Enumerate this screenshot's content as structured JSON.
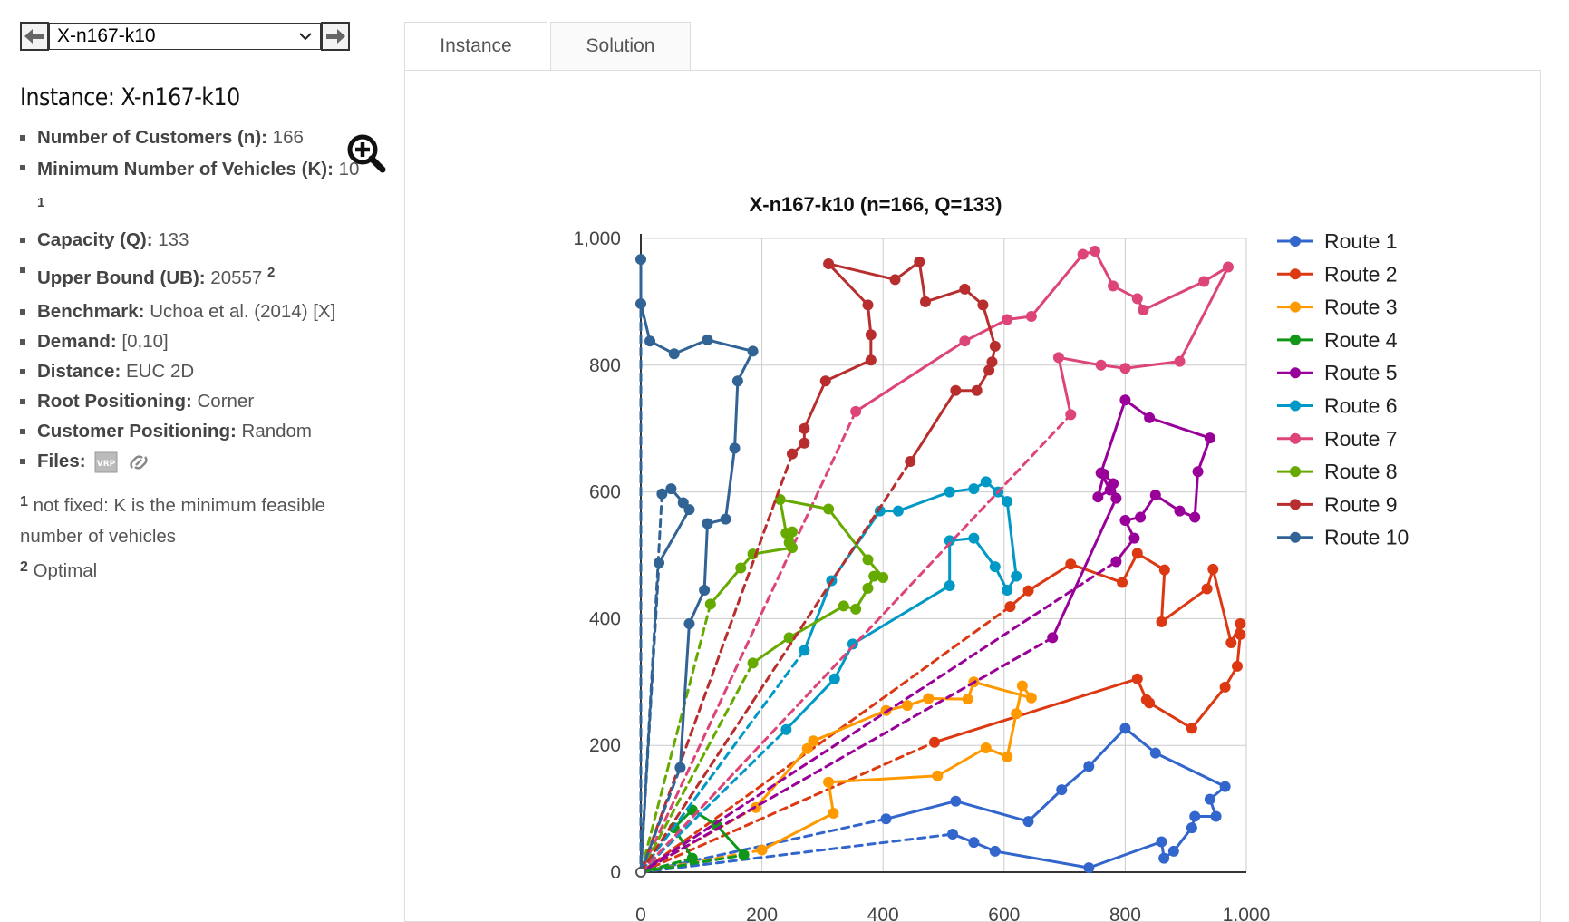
{
  "selector": {
    "value": "X-n167-k10"
  },
  "instance": {
    "title": "Instance: X-n167-k10",
    "n_label": "Number of Customers (n):",
    "n_value": " 166",
    "k_label": "Minimum Number of Vehicles (K):",
    "k_value": " 10",
    "k_note": "1",
    "q_label": "Capacity (Q):",
    "q_value": " 133",
    "ub_label": "Upper Bound (UB):",
    "ub_value": " 20557",
    "ub_note": "2",
    "bench_label": "Benchmark:",
    "bench_value": " Uchoa et al. (2014) [X]",
    "demand_label": "Demand:",
    "demand_value": " [0,10]",
    "distance_label": "Distance:",
    "distance_value": " EUC 2D",
    "root_label": "Root Positioning:",
    "root_value": " Corner",
    "cust_label": "Customer Positioning:",
    "cust_value": " Random",
    "files_label": "Files:",
    "files_icon": "vrp-file-icon",
    "link_icon": "link-icon",
    "zoom_icon": "zoom-in-icon"
  },
  "footnotes": [
    {
      "mark": "1",
      "text": " not fixed: K is the minimum feasible number of vehicles"
    },
    {
      "mark": "2",
      "text": " Optimal"
    }
  ],
  "tabs": {
    "instance": "Instance",
    "solution": "Solution"
  },
  "chart_data": {
    "type": "line",
    "title": "X-n167-k10 (n=166, Q=133)",
    "xlim": [
      0,
      1000
    ],
    "ylim": [
      0,
      1000
    ],
    "xticks": [
      "0",
      "200",
      "400",
      "600",
      "800",
      "1,000"
    ],
    "yticks": [
      "0",
      "200",
      "400",
      "600",
      "800",
      "1,000"
    ],
    "grid": true,
    "legend": "right",
    "depot": [
      0,
      0
    ],
    "series": [
      {
        "name": "Route 1",
        "color": "#3366cc",
        "points": [
          [
            0,
            0
          ],
          [
            515,
            60
          ],
          [
            550,
            47
          ],
          [
            585,
            33
          ],
          [
            740,
            7
          ],
          [
            860,
            48
          ],
          [
            864,
            22
          ],
          [
            880,
            33
          ],
          [
            910,
            70
          ],
          [
            915,
            88
          ],
          [
            950,
            88
          ],
          [
            940,
            115
          ],
          [
            965,
            135
          ],
          [
            850,
            188
          ],
          [
            800,
            227
          ],
          [
            740,
            167
          ],
          [
            695,
            130
          ],
          [
            640,
            80
          ],
          [
            520,
            112
          ],
          [
            405,
            84
          ],
          [
            0,
            0
          ]
        ]
      },
      {
        "name": "Route 2",
        "color": "#dc3912",
        "points": [
          [
            0,
            0
          ],
          [
            485,
            205
          ],
          [
            820,
            305
          ],
          [
            835,
            272
          ],
          [
            840,
            267
          ],
          [
            910,
            227
          ],
          [
            965,
            292
          ],
          [
            985,
            325
          ],
          [
            990,
            375
          ],
          [
            990,
            392
          ],
          [
            975,
            362
          ],
          [
            945,
            478
          ],
          [
            935,
            447
          ],
          [
            860,
            395
          ],
          [
            865,
            477
          ],
          [
            820,
            503
          ],
          [
            795,
            457
          ],
          [
            710,
            486
          ],
          [
            640,
            444
          ],
          [
            610,
            419
          ],
          [
            0,
            0
          ]
        ]
      },
      {
        "name": "Route 3",
        "color": "#ff9900",
        "points": [
          [
            0,
            0
          ],
          [
            200,
            35
          ],
          [
            318,
            93
          ],
          [
            310,
            142
          ],
          [
            490,
            152
          ],
          [
            570,
            196
          ],
          [
            605,
            182
          ],
          [
            620,
            250
          ],
          [
            630,
            294
          ],
          [
            645,
            275
          ],
          [
            550,
            300
          ],
          [
            540,
            273
          ],
          [
            475,
            274
          ],
          [
            440,
            263
          ],
          [
            405,
            255
          ],
          [
            285,
            207
          ],
          [
            275,
            195
          ],
          [
            190,
            102
          ],
          [
            0,
            0
          ]
        ]
      },
      {
        "name": "Route 4",
        "color": "#109618",
        "points": [
          [
            0,
            0
          ],
          [
            170,
            27
          ],
          [
            125,
            74
          ],
          [
            85,
            98
          ],
          [
            55,
            70
          ],
          [
            85,
            22
          ],
          [
            0,
            0
          ]
        ]
      },
      {
        "name": "Route 5",
        "color": "#990099",
        "points": [
          [
            0,
            0
          ],
          [
            785,
            490
          ],
          [
            815,
            527
          ],
          [
            800,
            555
          ],
          [
            825,
            560
          ],
          [
            850,
            595
          ],
          [
            890,
            570
          ],
          [
            915,
            560
          ],
          [
            920,
            632
          ],
          [
            940,
            685
          ],
          [
            840,
            717
          ],
          [
            800,
            745
          ],
          [
            760,
            630
          ],
          [
            775,
            603
          ],
          [
            755,
            592
          ],
          [
            765,
            628
          ],
          [
            780,
            613
          ],
          [
            785,
            590
          ],
          [
            680,
            370
          ],
          [
            0,
            0
          ]
        ]
      },
      {
        "name": "Route 6",
        "color": "#0099c6",
        "points": [
          [
            0,
            0
          ],
          [
            240,
            225
          ],
          [
            320,
            305
          ],
          [
            350,
            360
          ],
          [
            510,
            452
          ],
          [
            510,
            523
          ],
          [
            550,
            527
          ],
          [
            585,
            482
          ],
          [
            605,
            445
          ],
          [
            620,
            467
          ],
          [
            605,
            585
          ],
          [
            590,
            600
          ],
          [
            570,
            616
          ],
          [
            550,
            605
          ],
          [
            510,
            600
          ],
          [
            425,
            570
          ],
          [
            395,
            570
          ],
          [
            315,
            460
          ],
          [
            270,
            350
          ],
          [
            0,
            0
          ]
        ]
      },
      {
        "name": "Route 7",
        "color": "#dd4477",
        "points": [
          [
            0,
            0
          ],
          [
            710,
            722
          ],
          [
            690,
            812
          ],
          [
            760,
            800
          ],
          [
            800,
            795
          ],
          [
            890,
            806
          ],
          [
            970,
            955
          ],
          [
            930,
            932
          ],
          [
            830,
            887
          ],
          [
            820,
            905
          ],
          [
            780,
            925
          ],
          [
            750,
            980
          ],
          [
            730,
            975
          ],
          [
            645,
            877
          ],
          [
            605,
            872
          ],
          [
            535,
            838
          ],
          [
            355,
            727
          ],
          [
            0,
            0
          ]
        ]
      },
      {
        "name": "Route 8",
        "color": "#66aa00",
        "points": [
          [
            0,
            0
          ],
          [
            185,
            330
          ],
          [
            245,
            370
          ],
          [
            335,
            420
          ],
          [
            355,
            415
          ],
          [
            375,
            448
          ],
          [
            385,
            467
          ],
          [
            400,
            465
          ],
          [
            375,
            493
          ],
          [
            310,
            573
          ],
          [
            230,
            588
          ],
          [
            240,
            535
          ],
          [
            245,
            520
          ],
          [
            250,
            537
          ],
          [
            250,
            512
          ],
          [
            185,
            502
          ],
          [
            165,
            480
          ],
          [
            115,
            423
          ],
          [
            0,
            0
          ]
        ]
      },
      {
        "name": "Route 9",
        "color": "#b82e2e",
        "points": [
          [
            0,
            0
          ],
          [
            445,
            648
          ],
          [
            520,
            760
          ],
          [
            555,
            760
          ],
          [
            575,
            792
          ],
          [
            580,
            805
          ],
          [
            585,
            830
          ],
          [
            565,
            895
          ],
          [
            535,
            920
          ],
          [
            470,
            900
          ],
          [
            460,
            963
          ],
          [
            420,
            935
          ],
          [
            310,
            960
          ],
          [
            375,
            895
          ],
          [
            380,
            848
          ],
          [
            380,
            808
          ],
          [
            305,
            775
          ],
          [
            270,
            700
          ],
          [
            270,
            677
          ],
          [
            250,
            660
          ],
          [
            0,
            0
          ]
        ]
      },
      {
        "name": "Route 10",
        "color": "#316395",
        "points": [
          [
            0,
            0
          ],
          [
            65,
            165
          ],
          [
            80,
            392
          ],
          [
            105,
            445
          ],
          [
            110,
            550
          ],
          [
            140,
            557
          ],
          [
            155,
            669
          ],
          [
            160,
            775
          ],
          [
            185,
            822
          ],
          [
            110,
            840
          ],
          [
            55,
            818
          ],
          [
            15,
            838
          ],
          [
            0,
            897
          ],
          [
            0,
            967
          ],
          [
            0,
            0
          ],
          [
            30,
            488
          ],
          [
            80,
            572
          ],
          [
            70,
            583
          ],
          [
            50,
            605
          ],
          [
            35,
            597
          ],
          [
            0,
            0
          ]
        ]
      }
    ]
  }
}
